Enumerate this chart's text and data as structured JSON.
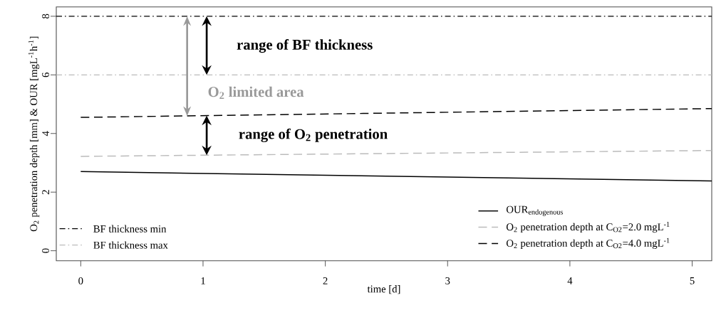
{
  "chart_data": {
    "type": "line",
    "xlabel": "time [d]",
    "ylabel": "O$_{2}$ penetration depth [mm] & OUR [mgL$^{-1}$h$^{-1}$]",
    "xlim": [
      -0.2,
      5.16
    ],
    "ylim": [
      -0.34,
      8.32
    ],
    "xticks": [
      0,
      1,
      2,
      3,
      4,
      5
    ],
    "yticks": [
      0,
      2,
      4,
      6,
      8
    ],
    "series": [
      {
        "name": "\\mathrm{OUR}_{\\mathrm{endogenous}}",
        "color": "#000000",
        "line_style": "solid",
        "values": [
          2.7,
          2.38
        ]
      },
      {
        "name": "O$_{2}$ penetration depth at C$_{O2}$=2.0 mgL$^{-1}$",
        "color": "#bbbbbb",
        "line_style": "dashed",
        "values": [
          3.22,
          3.42
        ]
      },
      {
        "name": "O$_{2}$ penetration depth at C$_{O2}$=4.0 mgL$^{-1}$",
        "color": "#000000",
        "line_style": "dashed",
        "values": [
          4.55,
          4.85
        ]
      }
    ],
    "ref_lines": [
      {
        "axis": "y",
        "value": 8,
        "label": "BF thickness min",
        "color": "#000000",
        "line_style": "dashdot"
      },
      {
        "axis": "y",
        "value": 6,
        "label": "BF thickness max",
        "color": "#bbbbbb",
        "line_style": "dashdot"
      }
    ],
    "x": [
      0,
      5.16
    ],
    "annotations": [
      "range of BF thickness",
      "O$_{2}$ limited area",
      "range of O$_{2}$ penetration"
    ],
    "legend": "bottom right",
    "grid": false,
    "marker": "none"
  }
}
